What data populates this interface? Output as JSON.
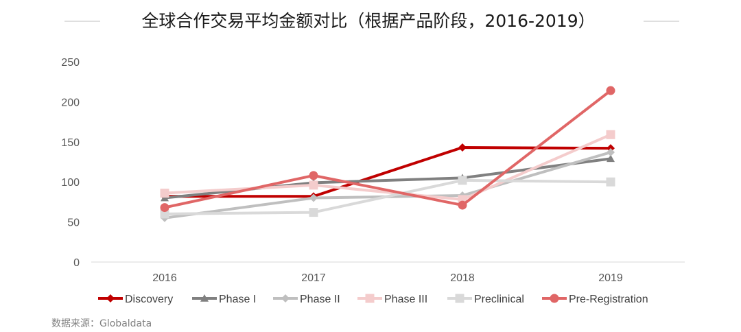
{
  "chart_data": {
    "type": "line",
    "title": "全球合作交易平均金额对比（根据产品阶段，2016-2019）",
    "source": "数据来源：Globaldata",
    "categories": [
      "2016",
      "2017",
      "2018",
      "2019"
    ],
    "y_ticks": [
      "0",
      "50",
      "100",
      "150",
      "200",
      "250"
    ],
    "ylim": [
      0,
      250
    ],
    "xlabel": "",
    "ylabel": "",
    "grid": false,
    "legend_position": "bottom",
    "series": [
      {
        "name": "Discovery",
        "values": [
          82,
          82,
          143,
          142
        ],
        "color": "#c00000",
        "marker": "diamond"
      },
      {
        "name": "Phase I",
        "values": [
          80,
          99,
          105,
          129
        ],
        "color": "#808080",
        "marker": "triangle"
      },
      {
        "name": "Phase II",
        "values": [
          55,
          80,
          83,
          137
        ],
        "color": "#bfbfbf",
        "marker": "diamond"
      },
      {
        "name": "Phase III",
        "values": [
          86,
          96,
          78,
          159
        ],
        "color": "#f4cccc",
        "marker": "square"
      },
      {
        "name": "Preclinical",
        "values": [
          60,
          62,
          102,
          100
        ],
        "color": "#d9d9d9",
        "marker": "square"
      },
      {
        "name": "Pre-Registration",
        "values": [
          68,
          108,
          71,
          214
        ],
        "color": "#e06666",
        "marker": "circle"
      }
    ]
  }
}
